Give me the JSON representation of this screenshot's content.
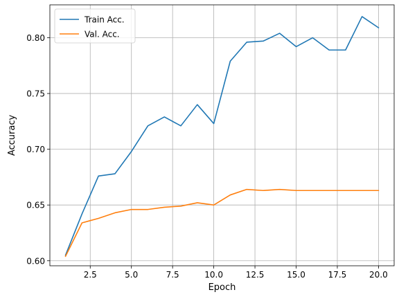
{
  "chart_data": {
    "type": "line",
    "title": "",
    "xlabel": "Epoch",
    "ylabel": "Accuracy",
    "xlim": [
      0.05,
      20.95
    ],
    "ylim": [
      0.5955,
      0.8295
    ],
    "grid": true,
    "legend_position": "upper-left",
    "x": [
      1,
      2,
      3,
      4,
      5,
      6,
      7,
      8,
      9,
      10,
      11,
      12,
      13,
      14,
      15,
      16,
      17,
      18,
      19,
      20
    ],
    "x_ticks": [
      2.5,
      5.0,
      7.5,
      10.0,
      12.5,
      15.0,
      17.5,
      20.0
    ],
    "x_tick_labels": [
      "2.5",
      "5.0",
      "7.5",
      "10.0",
      "12.5",
      "15.0",
      "17.5",
      "20.0"
    ],
    "y_ticks": [
      0.6,
      0.65,
      0.7,
      0.75,
      0.8
    ],
    "y_tick_labels": [
      "0.60",
      "0.65",
      "0.70",
      "0.75",
      "0.80"
    ],
    "series": [
      {
        "name": "Train Acc.",
        "color": "#1f77b4",
        "values": [
          0.605,
          0.642,
          0.676,
          0.678,
          0.698,
          0.721,
          0.729,
          0.721,
          0.74,
          0.723,
          0.779,
          0.796,
          0.797,
          0.804,
          0.792,
          0.8,
          0.789,
          0.789,
          0.819,
          0.809
        ]
      },
      {
        "name": "Val. Acc.",
        "color": "#ff7f0e",
        "values": [
          0.604,
          0.634,
          0.638,
          0.643,
          0.646,
          0.646,
          0.648,
          0.649,
          0.652,
          0.65,
          0.659,
          0.664,
          0.663,
          0.664,
          0.663,
          0.663,
          0.663,
          0.663,
          0.663,
          0.663
        ]
      }
    ]
  }
}
